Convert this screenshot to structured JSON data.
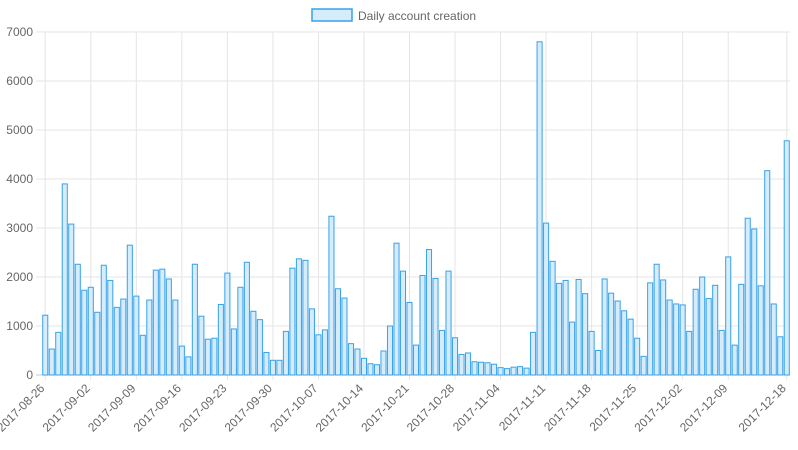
{
  "chart_data": {
    "type": "bar",
    "legend": {
      "label": "Daily account creation",
      "position": "top"
    },
    "colors": {
      "bar_fill": "#d7ecfb",
      "bar_stroke": "#36a2eb",
      "grid": "#e5e5e5",
      "text": "#666666"
    },
    "grid": true,
    "ylim": [
      0,
      7000
    ],
    "yticks": [
      0,
      1000,
      2000,
      3000,
      4000,
      5000,
      6000,
      7000
    ],
    "start_date": "2017-08-26",
    "x_tick_labels": [
      "2017-08-26",
      "2017-09-02",
      "2017-09-09",
      "2017-09-16",
      "2017-09-23",
      "2017-09-30",
      "2017-10-07",
      "2017-10-14",
      "2017-10-21",
      "2017-10-28",
      "2017-11-04",
      "2017-11-11",
      "2017-11-18",
      "2017-11-25",
      "2017-12-02",
      "2017-12-09",
      "2017-12-18"
    ],
    "series": [
      {
        "name": "Daily account creation",
        "values": [
          1220,
          530,
          870,
          3900,
          3080,
          2260,
          1730,
          1790,
          1280,
          2240,
          1930,
          1380,
          1550,
          2650,
          1610,
          810,
          1530,
          2140,
          2160,
          1960,
          1530,
          590,
          370,
          2260,
          1200,
          730,
          750,
          1440,
          2080,
          940,
          1790,
          2300,
          1300,
          1130,
          460,
          300,
          300,
          890,
          2180,
          2370,
          2340,
          1350,
          820,
          920,
          3240,
          1760,
          1570,
          640,
          530,
          340,
          230,
          210,
          490,
          1000,
          2690,
          2120,
          1480,
          610,
          2030,
          2560,
          1970,
          910,
          2120,
          760,
          420,
          450,
          270,
          260,
          250,
          220,
          150,
          130,
          160,
          170,
          140,
          870,
          6800,
          3100,
          2320,
          1870,
          1930,
          1080,
          1950,
          1660,
          890,
          500,
          1960,
          1670,
          1510,
          1310,
          1140,
          750,
          380,
          1880,
          2260,
          1940,
          1530,
          1450,
          1430,
          890,
          1750,
          2000,
          1560,
          1830,
          910,
          2410,
          610,
          1850,
          3200,
          2980,
          1820,
          4170,
          1450,
          780,
          4780
        ]
      }
    ]
  }
}
